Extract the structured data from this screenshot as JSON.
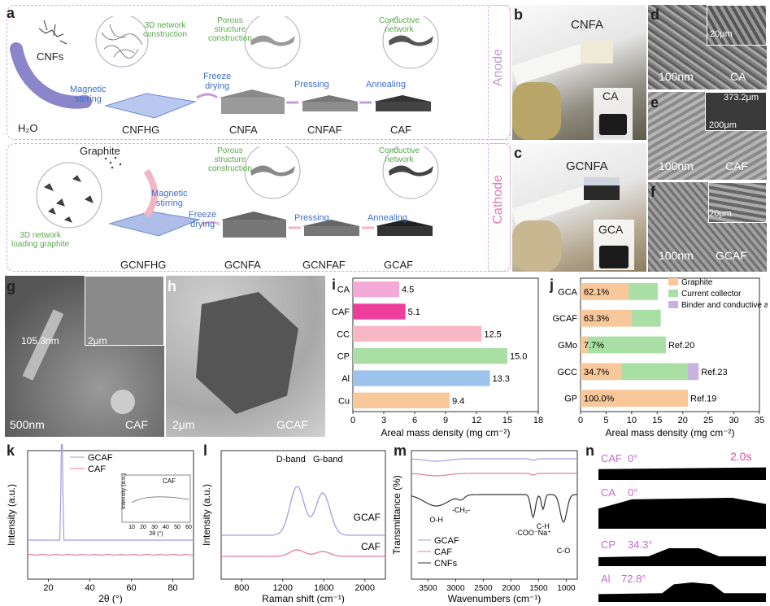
{
  "panels": {
    "a": "a",
    "b": "b",
    "c": "c",
    "d": "d",
    "e": "e",
    "f": "f",
    "g": "g",
    "h": "h",
    "i": "i",
    "j": "j",
    "k": "k",
    "l": "l",
    "m": "m",
    "n": "n"
  },
  "a": {
    "cnfs": "CNFs",
    "h2o": "H₂O",
    "mag1": "Magnetic\nstirring",
    "net3d": "3D network\nconstruction",
    "cnfhg": "CNFHG",
    "freeze1": "Freeze\ndrying",
    "porous1": "Porous\nstructure\nconstruction",
    "pressing1": "Pressing",
    "annealing1": "Annealing",
    "conductive1": "Conductive\nnetwork",
    "cnfa": "CNFA",
    "cnfaf": "CNFAF",
    "caf": "CAF",
    "anode": "Anode",
    "graphite": "Graphite",
    "mag2": "Magnetic\nstirring",
    "net3dg": "3D network\nloading graphite",
    "gcnfhg": "GCNFHG",
    "freeze2": "Freeze\ndrying",
    "porous2": "Porous\nstructure\nconstruction",
    "pressing2": "Pressing",
    "annealing2": "Annealing",
    "conductive2": "Conductive\nnetwork",
    "gcnfa": "GCNFA",
    "gcnfaf": "GCNFAF",
    "gcaf": "GCAF",
    "cathode": "Cathode"
  },
  "b": {
    "label": "CNFA",
    "inset": "CA"
  },
  "c": {
    "label": "GCNFA",
    "inset": "GCA"
  },
  "d": {
    "scale": "100nm",
    "inset_scale": "20μm",
    "name": "CA"
  },
  "e": {
    "scale": "100nm",
    "inset_scale": "200μm",
    "thickness": "373.2μm",
    "name": "CAF"
  },
  "f": {
    "scale": "100nm",
    "inset_scale": "20μm",
    "name": "GCAF"
  },
  "g": {
    "thick": "105.3nm",
    "inset_scale": "2μm",
    "scale": "500nm",
    "name": "CAF"
  },
  "h": {
    "scale": "2μm",
    "name": "GCAF"
  },
  "chart_data": [
    {
      "panel": "i",
      "type": "bar",
      "orientation": "horizontal",
      "categories": [
        "CA",
        "CAF",
        "CC",
        "CP",
        "Al",
        "Cu"
      ],
      "values": [
        4.5,
        5.1,
        12.5,
        15.0,
        13.3,
        9.4
      ],
      "value_labels": [
        "4.5",
        "5.1",
        "12.5",
        "15.0",
        "13.3",
        "9.4"
      ],
      "colors": [
        "#f4a9d6",
        "#ee3e9c",
        "#f7b8c4",
        "#a9dfa4",
        "#9cc3ec",
        "#f8c79a"
      ],
      "xlabel": "Areal mass density (mg cm⁻²)",
      "xlim": [
        0,
        18
      ],
      "xticks": [
        "0",
        "3",
        "6",
        "9",
        "12",
        "15",
        "18"
      ]
    },
    {
      "panel": "j",
      "type": "bar",
      "orientation": "horizontal",
      "stacked": true,
      "categories": [
        "GCA",
        "GCAF",
        "GMo",
        "GCC",
        "GP"
      ],
      "series": [
        {
          "name": "Graphite",
          "color": "#f8c79a",
          "values": [
            9.4,
            9.9,
            1.3,
            8.0,
            21.0
          ]
        },
        {
          "name": "Current collector",
          "color": "#a9dfa4",
          "values": [
            5.7,
            5.8,
            15.4,
            13.0,
            0
          ]
        },
        {
          "name": "Binder and conductive agent",
          "color": "#c7b2e0",
          "values": [
            0,
            0,
            0,
            2.1,
            0
          ]
        }
      ],
      "bar_labels": [
        "62.1%",
        "63.3%",
        "7.7%",
        "34.7%",
        "100.0%"
      ],
      "refs": [
        "",
        "",
        "Ref.20",
        "Ref.23",
        "Ref.19"
      ],
      "xlabel": "Areal mass density (mg cm⁻²)",
      "xlim": [
        0,
        35
      ],
      "xticks": [
        "0",
        "5",
        "10",
        "15",
        "20",
        "25",
        "30",
        "35"
      ]
    },
    {
      "panel": "k",
      "type": "line",
      "series": [
        "GCAF",
        "CAF"
      ],
      "colors": [
        "#a89be0",
        "#e27ca8"
      ],
      "xlabel": "2θ (°)",
      "ylabel": "Intensity (a.u.)",
      "xlim": [
        10,
        90
      ],
      "xticks": [
        "20",
        "40",
        "60",
        "80"
      ],
      "inset": {
        "legend": "CAF",
        "ylabel": "Intensity (a.u.)",
        "xlabel": "2θ (°)",
        "xticks": [
          "10",
          "20",
          "30",
          "40",
          "50",
          "60"
        ]
      }
    },
    {
      "panel": "l",
      "type": "line",
      "series": [
        "GCAF",
        "CAF"
      ],
      "colors": [
        "#a89be0",
        "#e27ca8"
      ],
      "annotations": [
        "D-band",
        "G-band"
      ],
      "xlabel": "Raman shift (cm⁻¹)",
      "ylabel": "Intensity (a.u.)",
      "xlim": [
        600,
        2200
      ],
      "xticks": [
        "800",
        "1200",
        "1600",
        "2000"
      ]
    },
    {
      "panel": "m",
      "type": "line",
      "series": [
        "GCAF",
        "CAF",
        "CNFs"
      ],
      "colors": [
        "#a89be0",
        "#e27ca8",
        "#333333"
      ],
      "annotations": [
        "O-H",
        "-CH₂-",
        "-COO⁻Na⁺",
        "C-H",
        "C-O"
      ],
      "xlabel": "Wavenumbers (cm⁻¹)",
      "ylabel": "Transmittance (%)",
      "xlim": [
        3800,
        800
      ],
      "xticks": [
        "3500",
        "3000",
        "2500",
        "2000",
        "1500",
        "1000"
      ]
    }
  ],
  "n": {
    "time": "2.0s",
    "rows": [
      {
        "sample": "CAF",
        "angle": "0°"
      },
      {
        "sample": "CA",
        "angle": "0°"
      },
      {
        "sample": "CP",
        "angle": "34.3°"
      },
      {
        "sample": "Al",
        "angle": "72.8°"
      }
    ]
  }
}
